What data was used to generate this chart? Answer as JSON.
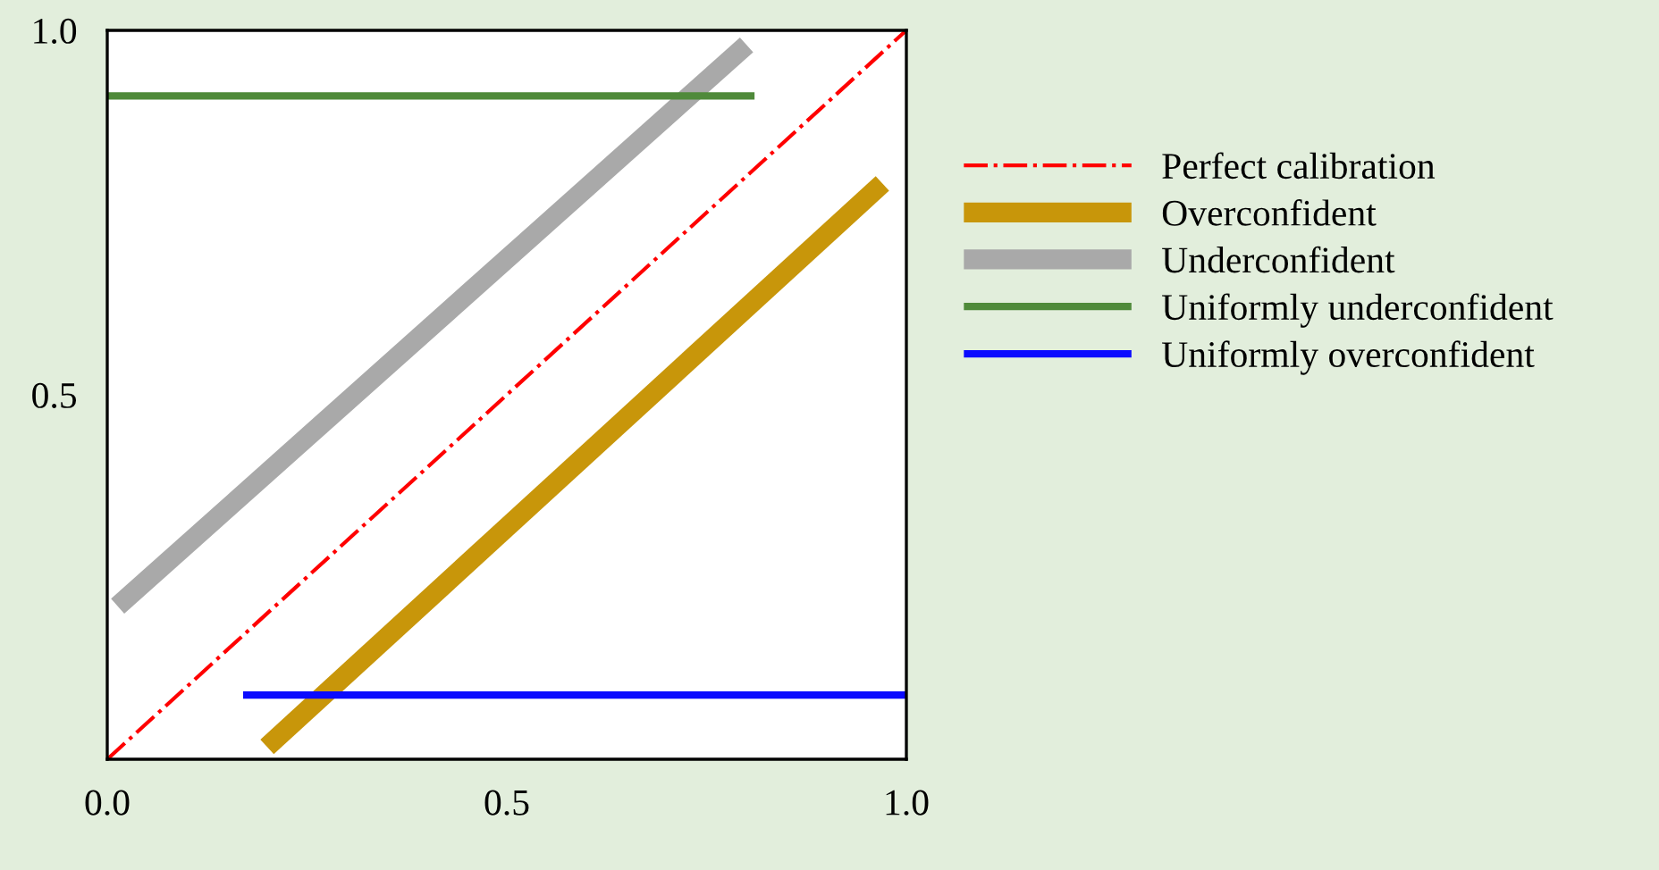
{
  "chart_data": {
    "type": "line",
    "series": [
      {
        "name": "Perfect calibration",
        "color": "#ff0000",
        "line_style": "dashdot",
        "x": [
          0,
          1
        ],
        "values": [
          0,
          1
        ]
      },
      {
        "name": "Overconfident",
        "color": "#c8960a",
        "x": [
          0.2,
          0.97
        ],
        "values": [
          0.017,
          0.79
        ]
      },
      {
        "name": "Underconfident",
        "color": "#a9a9a9",
        "x": [
          0.013,
          0.8
        ],
        "values": [
          0.21,
          0.98
        ]
      },
      {
        "name": "Uniformly underconfident",
        "color": "#4f8a3a",
        "x": [
          0,
          0.81
        ],
        "values": [
          0.91,
          0.91
        ]
      },
      {
        "name": "Uniformly overconfident",
        "color": "#0a0aff",
        "x": [
          0.17,
          1.0
        ],
        "values": [
          0.088,
          0.088
        ]
      }
    ],
    "xlim": [
      0,
      1
    ],
    "ylim": [
      0,
      1
    ],
    "xticks": [
      {
        "value": 0,
        "label": "0.0"
      },
      0.5,
      {
        "value": 1,
        "label": "1.0"
      }
    ],
    "yticks": [
      0.5,
      {
        "value": 1,
        "label": "1.0"
      }
    ],
    "grid": false,
    "legend": "right"
  }
}
